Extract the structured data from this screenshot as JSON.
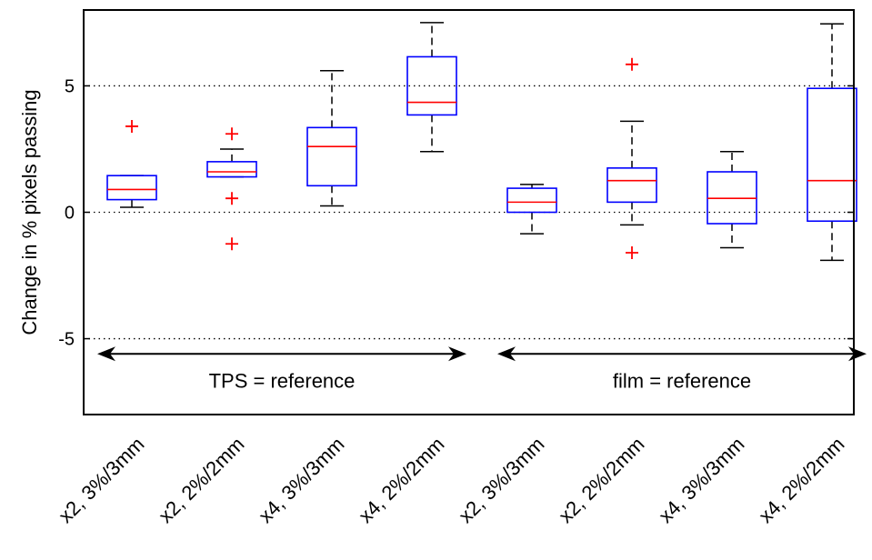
{
  "chart_data": {
    "type": "box",
    "ylabel": "Change in % pixels passing",
    "ylim": [
      -8,
      8
    ],
    "yticks": [
      -5,
      0,
      5
    ],
    "grid": "dotted horizontal at y ticks",
    "categories": [
      "x2, 3%/3mm",
      "x2, 2%/2mm",
      "x4, 3%/3mm",
      "x4, 2%/2mm",
      "x2, 3%/3mm",
      "x2, 2%/2mm",
      "x4, 3%/3mm",
      "x4, 2%/2mm"
    ],
    "boxes": [
      {
        "whisker_low": 0.2,
        "q1": 0.5,
        "median": 0.9,
        "q3": 1.45,
        "whisker_high": 1.45,
        "outliers": [
          3.4
        ]
      },
      {
        "whisker_low": 1.4,
        "q1": 1.4,
        "median": 1.6,
        "q3": 2.0,
        "whisker_high": 2.5,
        "outliers": [
          3.1,
          0.55,
          -1.25
        ]
      },
      {
        "whisker_low": 0.25,
        "q1": 1.05,
        "median": 2.6,
        "q3": 3.35,
        "whisker_high": 5.6,
        "outliers": []
      },
      {
        "whisker_low": 2.4,
        "q1": 3.85,
        "median": 4.35,
        "q3": 6.15,
        "whisker_high": 7.5,
        "outliers": []
      },
      {
        "whisker_low": -0.85,
        "q1": 0.0,
        "median": 0.4,
        "q3": 0.95,
        "whisker_high": 1.1,
        "outliers": []
      },
      {
        "whisker_low": -0.5,
        "q1": 0.4,
        "median": 1.25,
        "q3": 1.75,
        "whisker_high": 3.6,
        "outliers": [
          5.85,
          -1.6
        ]
      },
      {
        "whisker_low": -1.4,
        "q1": -0.45,
        "median": 0.55,
        "q3": 1.6,
        "whisker_high": 2.4,
        "outliers": []
      },
      {
        "whisker_low": -1.9,
        "q1": -0.35,
        "median": 1.25,
        "q3": 4.9,
        "whisker_high": 7.45,
        "outliers": []
      }
    ],
    "annotations": [
      {
        "text": "TPS = reference",
        "y": -5.6,
        "from_category": 0,
        "to_category": 3
      },
      {
        "text": "film = reference",
        "y": -5.6,
        "from_category": 4,
        "to_category": 7
      }
    ],
    "colors": {
      "box": "#0000ff",
      "median": "#ff0000",
      "whisker": "#000000",
      "outlier": "#ff0000",
      "axis": "#000000"
    }
  }
}
